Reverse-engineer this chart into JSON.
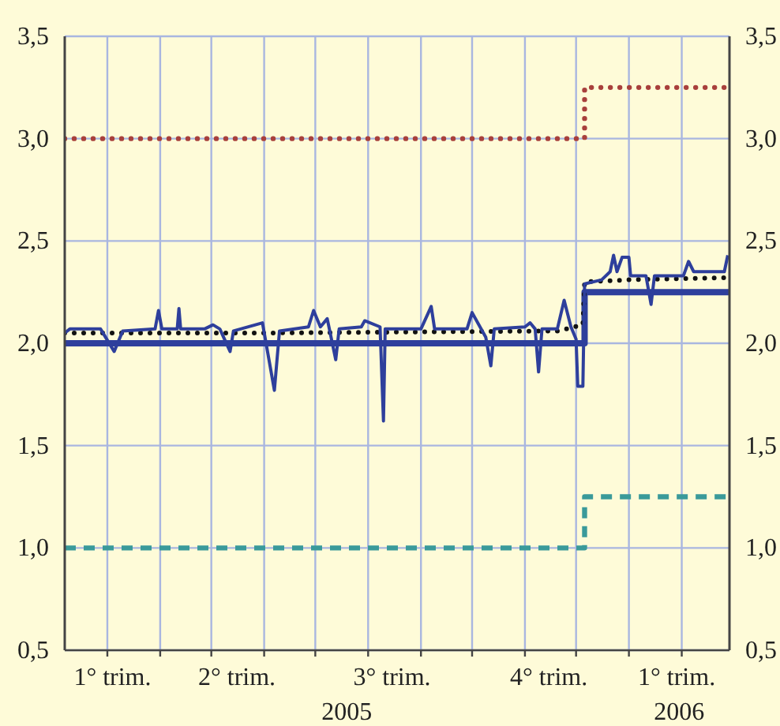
{
  "chart_data": {
    "type": "line",
    "xlim": [
      "2005-02-04",
      "2006-03-01"
    ],
    "xticks": [
      {
        "value": "2005-03-01",
        "label": null
      },
      {
        "value": "2005-04-01",
        "label": null
      },
      {
        "value": "2005-05-01",
        "label": null
      },
      {
        "value": "2005-06-01",
        "label": null
      },
      {
        "value": "2005-07-01",
        "label": null
      },
      {
        "value": "2005-08-01",
        "label": null
      },
      {
        "value": "2005-09-01",
        "label": null
      },
      {
        "value": "2005-10-01",
        "label": null
      },
      {
        "value": "2005-11-01",
        "label": null
      },
      {
        "value": "2005-12-01",
        "label": null
      },
      {
        "value": "2006-01-01",
        "label": null
      },
      {
        "value": "2006-02-01",
        "label": null
      },
      {
        "value": "2005-03-04",
        "label": "1° trim."
      },
      {
        "value": "2005-05-16",
        "label": "2° trim."
      },
      {
        "value": "2005-08-15",
        "label": "3° trim."
      },
      {
        "value": "2005-11-15",
        "label": "4° trim."
      },
      {
        "value": "2006-01-29",
        "label": "1° trim."
      }
    ],
    "annotations": [
      "2005",
      "2006"
    ],
    "ylim": [
      0.5,
      3.5
    ],
    "yticks": [
      {
        "value": 0.5,
        "label": "0,5"
      },
      {
        "value": 1,
        "label": "1,0"
      },
      {
        "value": 1.5,
        "label": "1,5"
      },
      {
        "value": 2,
        "label": "2,0"
      },
      {
        "value": 2.5,
        "label": "2,5"
      },
      {
        "value": 3,
        "label": "3,0"
      },
      {
        "value": 3.5,
        "label": "3,5"
      }
    ],
    "y2lim": [
      0.5,
      3.5
    ],
    "y2ticks": [
      {
        "value": 0.5,
        "label": "0,5"
      },
      {
        "value": 1,
        "label": "1,0"
      },
      {
        "value": 1.5,
        "label": "1,5"
      },
      {
        "value": 2,
        "label": "2,0"
      },
      {
        "value": 2.5,
        "label": "2,5"
      },
      {
        "value": 3,
        "label": "3,0"
      },
      {
        "value": 3.5,
        "label": "3,5"
      }
    ],
    "grid": true,
    "series": [
      {
        "type": "step",
        "color": "#a8403c",
        "line_style": "dotted",
        "x": [
          "2005-02-04",
          "2005-12-06",
          "2006-03-01"
        ],
        "values": [
          3.0,
          3.25,
          3.25
        ]
      },
      {
        "type": "step",
        "color": "#3a9a9a",
        "line_style": "dashed",
        "x": [
          "2005-02-04",
          "2005-12-06",
          "2006-03-01"
        ],
        "values": [
          1.0,
          1.25,
          1.25
        ]
      },
      {
        "type": "step",
        "color": "#2e3f9c",
        "line_style": "solid",
        "x": [
          "2005-02-04",
          "2005-12-06",
          "2006-03-01"
        ],
        "values": [
          2.0,
          2.25,
          2.25
        ]
      },
      {
        "color": "#111111",
        "line_style": "dotted",
        "x": [
          "2005-02-04",
          "2005-06-01",
          "2005-11-20",
          "2005-12-05",
          "2005-12-06",
          "2006-01-01",
          "2006-02-28"
        ],
        "values": [
          2.05,
          2.05,
          2.06,
          2.09,
          2.3,
          2.31,
          2.32
        ]
      },
      {
        "color": "#2e3f9c",
        "line_style": "solid",
        "x": [
          "2005-02-04",
          "2005-02-07",
          "2005-02-25",
          "2005-03-05",
          "2005-03-10",
          "2005-03-29",
          "2005-03-31",
          "2005-04-02",
          "2005-04-11",
          "2005-04-12",
          "2005-04-13",
          "2005-04-27",
          "2005-05-02",
          "2005-05-06",
          "2005-05-12",
          "2005-05-14",
          "2005-05-31",
          "2005-06-07",
          "2005-06-10",
          "2005-06-27",
          "2005-06-30",
          "2005-07-04",
          "2005-07-08",
          "2005-07-13",
          "2005-07-15",
          "2005-07-28",
          "2005-07-30",
          "2005-08-08",
          "2005-08-10",
          "2005-08-11",
          "2005-09-01",
          "2005-09-07",
          "2005-09-09",
          "2005-09-28",
          "2005-10-01",
          "2005-10-05",
          "2005-10-09",
          "2005-10-12",
          "2005-10-14",
          "2005-11-01",
          "2005-11-04",
          "2005-11-07",
          "2005-11-09",
          "2005-11-11",
          "2005-11-20",
          "2005-11-24",
          "2005-11-28",
          "2005-12-01",
          "2005-12-02",
          "2005-12-05",
          "2005-12-06",
          "2005-12-16",
          "2005-12-21",
          "2005-12-23",
          "2005-12-25",
          "2005-12-28",
          "2006-01-01",
          "2006-01-02",
          "2006-01-11",
          "2006-01-14",
          "2006-01-16",
          "2006-02-02",
          "2006-02-05",
          "2006-02-08",
          "2006-02-26",
          "2006-02-28"
        ],
        "values": [
          2.05,
          2.07,
          2.07,
          1.96,
          2.06,
          2.07,
          2.16,
          2.07,
          2.07,
          2.17,
          2.07,
          2.07,
          2.09,
          2.07,
          1.96,
          2.06,
          2.1,
          1.77,
          2.06,
          2.08,
          2.16,
          2.08,
          2.12,
          1.92,
          2.07,
          2.08,
          2.11,
          2.08,
          1.62,
          2.07,
          2.07,
          2.18,
          2.07,
          2.07,
          2.15,
          2.09,
          2.03,
          1.89,
          2.07,
          2.08,
          2.1,
          2.07,
          1.86,
          2.07,
          2.07,
          2.21,
          2.08,
          2.02,
          1.79,
          1.79,
          2.29,
          2.31,
          2.35,
          2.43,
          2.35,
          2.42,
          2.42,
          2.33,
          2.33,
          2.19,
          2.33,
          2.33,
          2.4,
          2.35,
          2.35,
          2.43
        ]
      }
    ]
  }
}
